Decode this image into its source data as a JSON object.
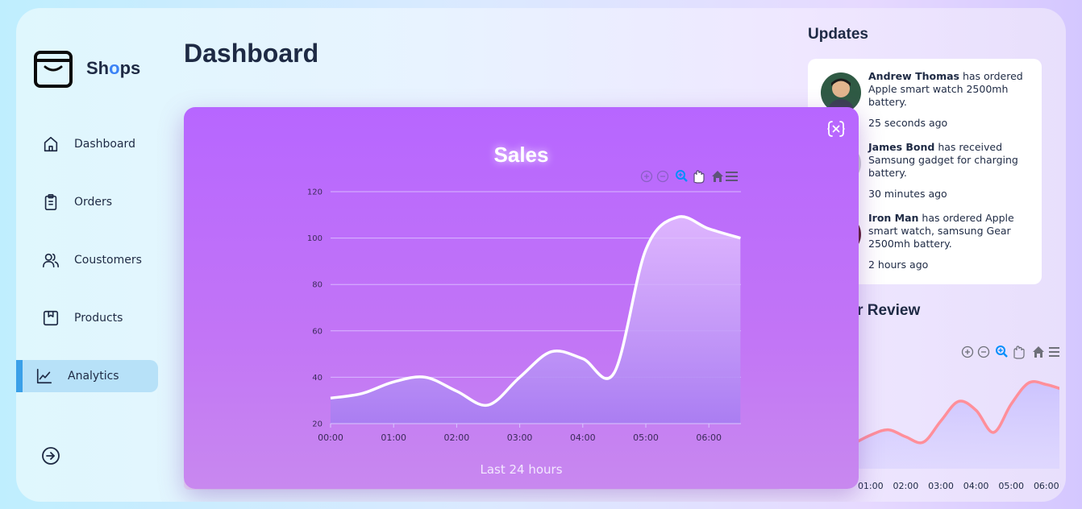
{
  "app": {
    "name_prefix": "Sh",
    "name_o": "o",
    "name_suffix": "ps"
  },
  "page_title": "Dashboard",
  "sidebar": {
    "items": [
      {
        "label": "Dashboard",
        "icon": "home-icon"
      },
      {
        "label": "Orders",
        "icon": "clipboard-icon"
      },
      {
        "label": "Coustomers",
        "icon": "users-icon"
      },
      {
        "label": "Products",
        "icon": "box-icon"
      },
      {
        "label": "Analytics",
        "icon": "chart-icon",
        "active": true
      }
    ],
    "logout_icon": "logout-icon"
  },
  "updates": {
    "title": "Updates",
    "items": [
      {
        "name": "Andrew Thomas",
        "text": " has ordered Apple smart watch 2500mh battery.",
        "time": "25 seconds ago"
      },
      {
        "name": "James Bond",
        "text": " has received Samsung gadget for charging battery.",
        "time": "30 minutes ago"
      },
      {
        "name": "Iron Man",
        "text": " has ordered Apple smart watch, samsung Gear 2500mh battery.",
        "time": "2 hours ago"
      }
    ]
  },
  "review": {
    "title": "omer Review",
    "x_labels": [
      "01:00",
      "02:00",
      "03:00",
      "04:00",
      "05:00",
      "06:00"
    ]
  },
  "modal": {
    "title": "Sales",
    "caption": "Last 24 hours"
  },
  "colors": {
    "accent": "#3aa0e8",
    "modal_bg": "#b766ff",
    "review_line": "#ff8f9a"
  },
  "chart_data": [
    {
      "type": "area",
      "title": "Sales",
      "x": [
        "00:00",
        "00:30",
        "01:00",
        "01:30",
        "02:00",
        "02:30",
        "03:00",
        "03:30",
        "04:00",
        "04:30",
        "05:00",
        "05:30",
        "06:00",
        "06:30"
      ],
      "x_tick_labels": [
        "00:00",
        "01:00",
        "02:00",
        "03:00",
        "04:00",
        "05:00",
        "06:00"
      ],
      "y_tick_labels": [
        "20",
        "40",
        "60",
        "80",
        "100",
        "120"
      ],
      "series": [
        {
          "values": [
            31,
            33,
            38,
            40,
            34,
            28,
            40,
            51,
            48,
            42,
            95,
            109,
            104,
            100
          ]
        }
      ],
      "ylim": [
        20,
        120
      ],
      "grid": true
    },
    {
      "type": "area",
      "title": "",
      "x": [
        "00:30",
        "01:00",
        "01:30",
        "02:00",
        "02:30",
        "03:00",
        "03:30",
        "04:00",
        "04:30",
        "05:00",
        "05:30",
        "06:00",
        "06:30"
      ],
      "x_tick_labels": [
        "01:00",
        "02:00",
        "03:00",
        "04:00",
        "05:00",
        "06:00"
      ],
      "series": [
        {
          "values": [
            28,
            38,
            44,
            36,
            30,
            54,
            76,
            66,
            41,
            73,
            97,
            95,
            89
          ]
        }
      ],
      "ylim": [
        0,
        120
      ],
      "grid": false
    }
  ]
}
